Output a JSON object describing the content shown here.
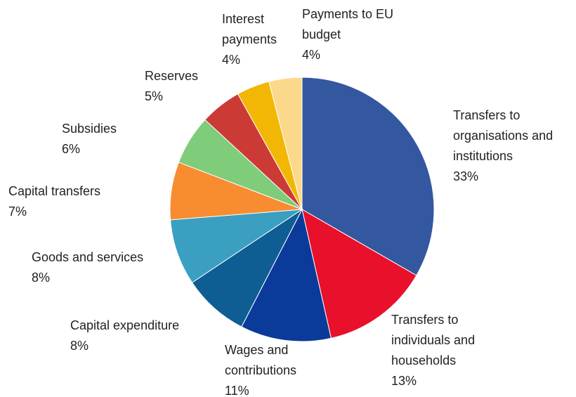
{
  "chart_data": {
    "type": "pie",
    "categories": [
      "Transfers to organisations and institutions",
      "Transfers to individuals and households",
      "Wages and contributions",
      "Capital expenditure",
      "Goods and services",
      "Capital transfers",
      "Subsidies",
      "Reserves",
      "Interest payments",
      "Payments to EU budget"
    ],
    "values": [
      33,
      13,
      11,
      8,
      8,
      7,
      6,
      5,
      4,
      4
    ],
    "value_labels": [
      "33%",
      "13%",
      "11%",
      "8%",
      "8%",
      "7%",
      "6%",
      "5%",
      "4%",
      "4%"
    ],
    "colors": [
      "#34589f",
      "#e8102a",
      "#0a3a9a",
      "#0e5e94",
      "#3a9fc0",
      "#f88c30",
      "#7fcc7a",
      "#cc3a36",
      "#f2b705",
      "#fcd98a"
    ]
  }
}
